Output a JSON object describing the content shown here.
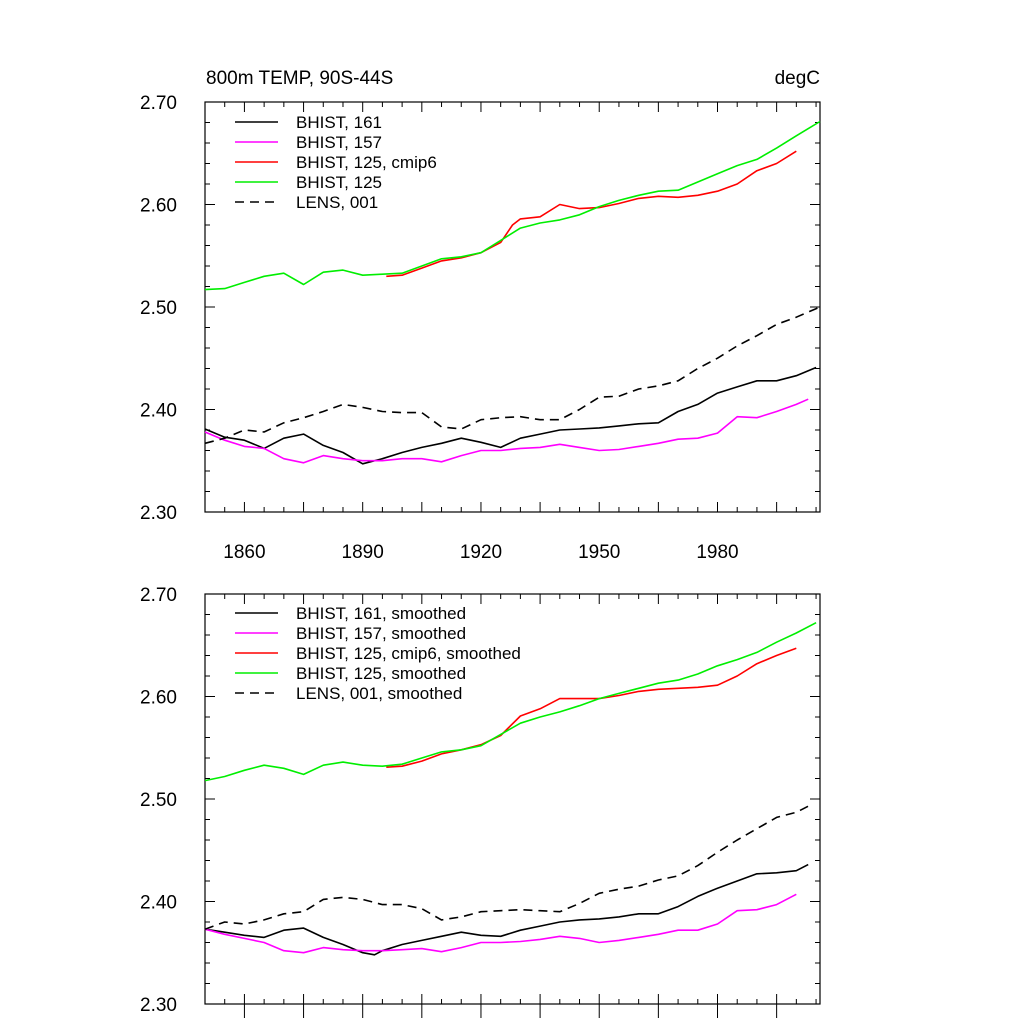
{
  "chart_data": [
    {
      "type": "line",
      "title": "800m TEMP, 90S-44S",
      "units": "degC",
      "xlabel": "",
      "ylabel": "",
      "xlim": [
        1850,
        2006
      ],
      "ylim": [
        2.3,
        2.7
      ],
      "xticks": [
        1860,
        1890,
        1920,
        1950,
        1980
      ],
      "xtick_labels": [
        "1860",
        "1890",
        "1920",
        "1950",
        "1980"
      ],
      "yticks": [
        2.3,
        2.4,
        2.5,
        2.6,
        2.7
      ],
      "ytick_labels": [
        "2.30",
        "2.40",
        "2.50",
        "2.60",
        "2.70"
      ],
      "legend_position": "top-left",
      "series": [
        {
          "name": "BHIST, 161",
          "color": "#000000",
          "dash": false,
          "x": [
            1850,
            1855,
            1860,
            1865,
            1870,
            1875,
            1880,
            1885,
            1890,
            1895,
            1900,
            1905,
            1910,
            1915,
            1920,
            1925,
            1930,
            1935,
            1940,
            1945,
            1950,
            1955,
            1960,
            1965,
            1970,
            1975,
            1980,
            1985,
            1990,
            1995,
            2000,
            2005
          ],
          "y": [
            2.381,
            2.373,
            2.37,
            2.362,
            2.372,
            2.376,
            2.365,
            2.358,
            2.347,
            2.352,
            2.358,
            2.363,
            2.367,
            2.372,
            2.368,
            2.363,
            2.372,
            2.376,
            2.38,
            2.381,
            2.382,
            2.384,
            2.386,
            2.387,
            2.398,
            2.405,
            2.416,
            2.422,
            2.428,
            2.428,
            2.433,
            2.441
          ]
        },
        {
          "name": "BHIST, 157",
          "color": "#ff00ff",
          "dash": false,
          "x": [
            1850,
            1855,
            1860,
            1865,
            1870,
            1875,
            1880,
            1885,
            1890,
            1895,
            1900,
            1905,
            1910,
            1915,
            1920,
            1925,
            1930,
            1935,
            1940,
            1945,
            1950,
            1955,
            1960,
            1965,
            1970,
            1975,
            1980,
            1985,
            1990,
            1995,
            2000,
            2003
          ],
          "y": [
            2.378,
            2.37,
            2.364,
            2.362,
            2.352,
            2.348,
            2.355,
            2.352,
            2.35,
            2.35,
            2.352,
            2.352,
            2.349,
            2.355,
            2.36,
            2.36,
            2.362,
            2.363,
            2.366,
            2.363,
            2.36,
            2.361,
            2.364,
            2.367,
            2.371,
            2.372,
            2.377,
            2.393,
            2.392,
            2.398,
            2.405,
            2.41
          ]
        },
        {
          "name": "BHIST, 125, cmip6",
          "color": "#ff0000",
          "dash": false,
          "x": [
            1896,
            1900,
            1905,
            1910,
            1915,
            1920,
            1925,
            1928,
            1930,
            1935,
            1940,
            1945,
            1950,
            1955,
            1960,
            1965,
            1970,
            1975,
            1980,
            1985,
            1990,
            1995,
            2000
          ],
          "y": [
            2.53,
            2.531,
            2.538,
            2.545,
            2.548,
            2.553,
            2.563,
            2.58,
            2.586,
            2.588,
            2.6,
            2.596,
            2.597,
            2.601,
            2.606,
            2.608,
            2.607,
            2.609,
            2.613,
            2.62,
            2.633,
            2.64,
            2.652
          ]
        },
        {
          "name": "BHIST, 125",
          "color": "#00ee00",
          "dash": false,
          "x": [
            1850,
            1855,
            1860,
            1865,
            1870,
            1875,
            1880,
            1885,
            1890,
            1895,
            1900,
            1905,
            1910,
            1915,
            1920,
            1925,
            1930,
            1935,
            1940,
            1945,
            1950,
            1955,
            1960,
            1965,
            1970,
            1975,
            1980,
            1985,
            1990,
            1995,
            2000,
            2006
          ],
          "y": [
            2.517,
            2.518,
            2.524,
            2.53,
            2.533,
            2.522,
            2.534,
            2.536,
            2.531,
            2.532,
            2.533,
            2.54,
            2.547,
            2.549,
            2.553,
            2.565,
            2.577,
            2.582,
            2.585,
            2.59,
            2.598,
            2.604,
            2.609,
            2.613,
            2.614,
            2.622,
            2.63,
            2.638,
            2.644,
            2.655,
            2.667,
            2.681
          ]
        },
        {
          "name": "LENS, 001",
          "color": "#000000",
          "dash": true,
          "x": [
            1850,
            1855,
            1860,
            1865,
            1870,
            1875,
            1880,
            1885,
            1890,
            1895,
            1900,
            1905,
            1910,
            1915,
            1920,
            1925,
            1930,
            1935,
            1940,
            1945,
            1950,
            1955,
            1960,
            1965,
            1970,
            1975,
            1980,
            1985,
            1990,
            1995,
            2000,
            2006
          ],
          "y": [
            2.367,
            2.372,
            2.38,
            2.378,
            2.387,
            2.392,
            2.398,
            2.405,
            2.402,
            2.398,
            2.397,
            2.397,
            2.383,
            2.381,
            2.39,
            2.392,
            2.393,
            2.39,
            2.39,
            2.4,
            2.412,
            2.413,
            2.42,
            2.423,
            2.428,
            2.44,
            2.45,
            2.462,
            2.472,
            2.483,
            2.49,
            2.5
          ]
        }
      ]
    },
    {
      "type": "line",
      "title": "",
      "xlabel": "",
      "ylabel": "",
      "xlim": [
        1850,
        2006
      ],
      "ylim": [
        2.3,
        2.7
      ],
      "xticks": [
        1860,
        1890,
        1920,
        1950,
        1980
      ],
      "yticks": [
        2.3,
        2.4,
        2.5,
        2.6,
        2.7
      ],
      "ytick_labels": [
        "2.30",
        "2.40",
        "2.50",
        "2.60",
        "2.70"
      ],
      "legend_position": "top-left",
      "series": [
        {
          "name": "BHIST, 161, smoothed",
          "color": "#000000",
          "dash": false,
          "x": [
            1850,
            1855,
            1860,
            1865,
            1870,
            1875,
            1880,
            1885,
            1890,
            1893,
            1895,
            1900,
            1905,
            1910,
            1915,
            1920,
            1925,
            1930,
            1935,
            1940,
            1945,
            1950,
            1955,
            1960,
            1965,
            1970,
            1975,
            1980,
            1985,
            1990,
            1995,
            2000,
            2003
          ],
          "y": [
            2.373,
            2.37,
            2.367,
            2.365,
            2.372,
            2.374,
            2.365,
            2.358,
            2.35,
            2.348,
            2.352,
            2.358,
            2.362,
            2.366,
            2.37,
            2.367,
            2.366,
            2.372,
            2.376,
            2.38,
            2.382,
            2.383,
            2.385,
            2.388,
            2.388,
            2.395,
            2.405,
            2.413,
            2.42,
            2.427,
            2.428,
            2.43,
            2.436
          ]
        },
        {
          "name": "BHIST, 157, smoothed",
          "color": "#ff00ff",
          "dash": false,
          "x": [
            1850,
            1855,
            1860,
            1865,
            1870,
            1875,
            1880,
            1885,
            1890,
            1895,
            1900,
            1905,
            1910,
            1915,
            1920,
            1925,
            1930,
            1935,
            1940,
            1945,
            1950,
            1955,
            1960,
            1965,
            1970,
            1975,
            1980,
            1985,
            1990,
            1995,
            2000
          ],
          "y": [
            2.373,
            2.368,
            2.364,
            2.36,
            2.352,
            2.35,
            2.355,
            2.353,
            2.352,
            2.352,
            2.353,
            2.354,
            2.351,
            2.355,
            2.36,
            2.36,
            2.361,
            2.363,
            2.366,
            2.364,
            2.36,
            2.362,
            2.365,
            2.368,
            2.372,
            2.372,
            2.378,
            2.391,
            2.392,
            2.397,
            2.407
          ]
        },
        {
          "name": "BHIST, 125, cmip6, smoothed",
          "color": "#ff0000",
          "dash": false,
          "x": [
            1896,
            1900,
            1905,
            1910,
            1915,
            1920,
            1925,
            1930,
            1935,
            1940,
            1945,
            1950,
            1955,
            1960,
            1965,
            1970,
            1975,
            1980,
            1985,
            1990,
            1995,
            2000
          ],
          "y": [
            2.531,
            2.532,
            2.537,
            2.544,
            2.548,
            2.553,
            2.562,
            2.581,
            2.588,
            2.598,
            2.598,
            2.598,
            2.601,
            2.605,
            2.607,
            2.608,
            2.609,
            2.611,
            2.62,
            2.632,
            2.64,
            2.647
          ]
        },
        {
          "name": "BHIST, 125, smoothed",
          "color": "#00ee00",
          "dash": false,
          "x": [
            1850,
            1855,
            1860,
            1865,
            1870,
            1875,
            1880,
            1885,
            1890,
            1895,
            1900,
            1905,
            1910,
            1915,
            1920,
            1925,
            1930,
            1935,
            1940,
            1945,
            1950,
            1955,
            1960,
            1965,
            1970,
            1975,
            1980,
            1985,
            1990,
            1995,
            2000,
            2005
          ],
          "y": [
            2.518,
            2.522,
            2.528,
            2.533,
            2.53,
            2.524,
            2.533,
            2.536,
            2.533,
            2.532,
            2.534,
            2.54,
            2.546,
            2.548,
            2.552,
            2.563,
            2.574,
            2.58,
            2.585,
            2.591,
            2.598,
            2.603,
            2.608,
            2.613,
            2.616,
            2.622,
            2.63,
            2.636,
            2.643,
            2.653,
            2.662,
            2.672
          ]
        },
        {
          "name": "LENS, 001, smoothed",
          "color": "#000000",
          "dash": true,
          "x": [
            1850,
            1855,
            1860,
            1865,
            1870,
            1875,
            1880,
            1885,
            1890,
            1895,
            1900,
            1905,
            1910,
            1915,
            1920,
            1925,
            1930,
            1935,
            1940,
            1945,
            1950,
            1955,
            1960,
            1965,
            1970,
            1975,
            1980,
            1985,
            1990,
            1995,
            2000,
            2003
          ],
          "y": [
            2.373,
            2.38,
            2.378,
            2.382,
            2.388,
            2.39,
            2.402,
            2.404,
            2.402,
            2.397,
            2.397,
            2.393,
            2.382,
            2.385,
            2.39,
            2.391,
            2.392,
            2.391,
            2.39,
            2.398,
            2.408,
            2.412,
            2.415,
            2.421,
            2.425,
            2.435,
            2.448,
            2.46,
            2.471,
            2.482,
            2.487,
            2.493
          ]
        }
      ]
    }
  ]
}
